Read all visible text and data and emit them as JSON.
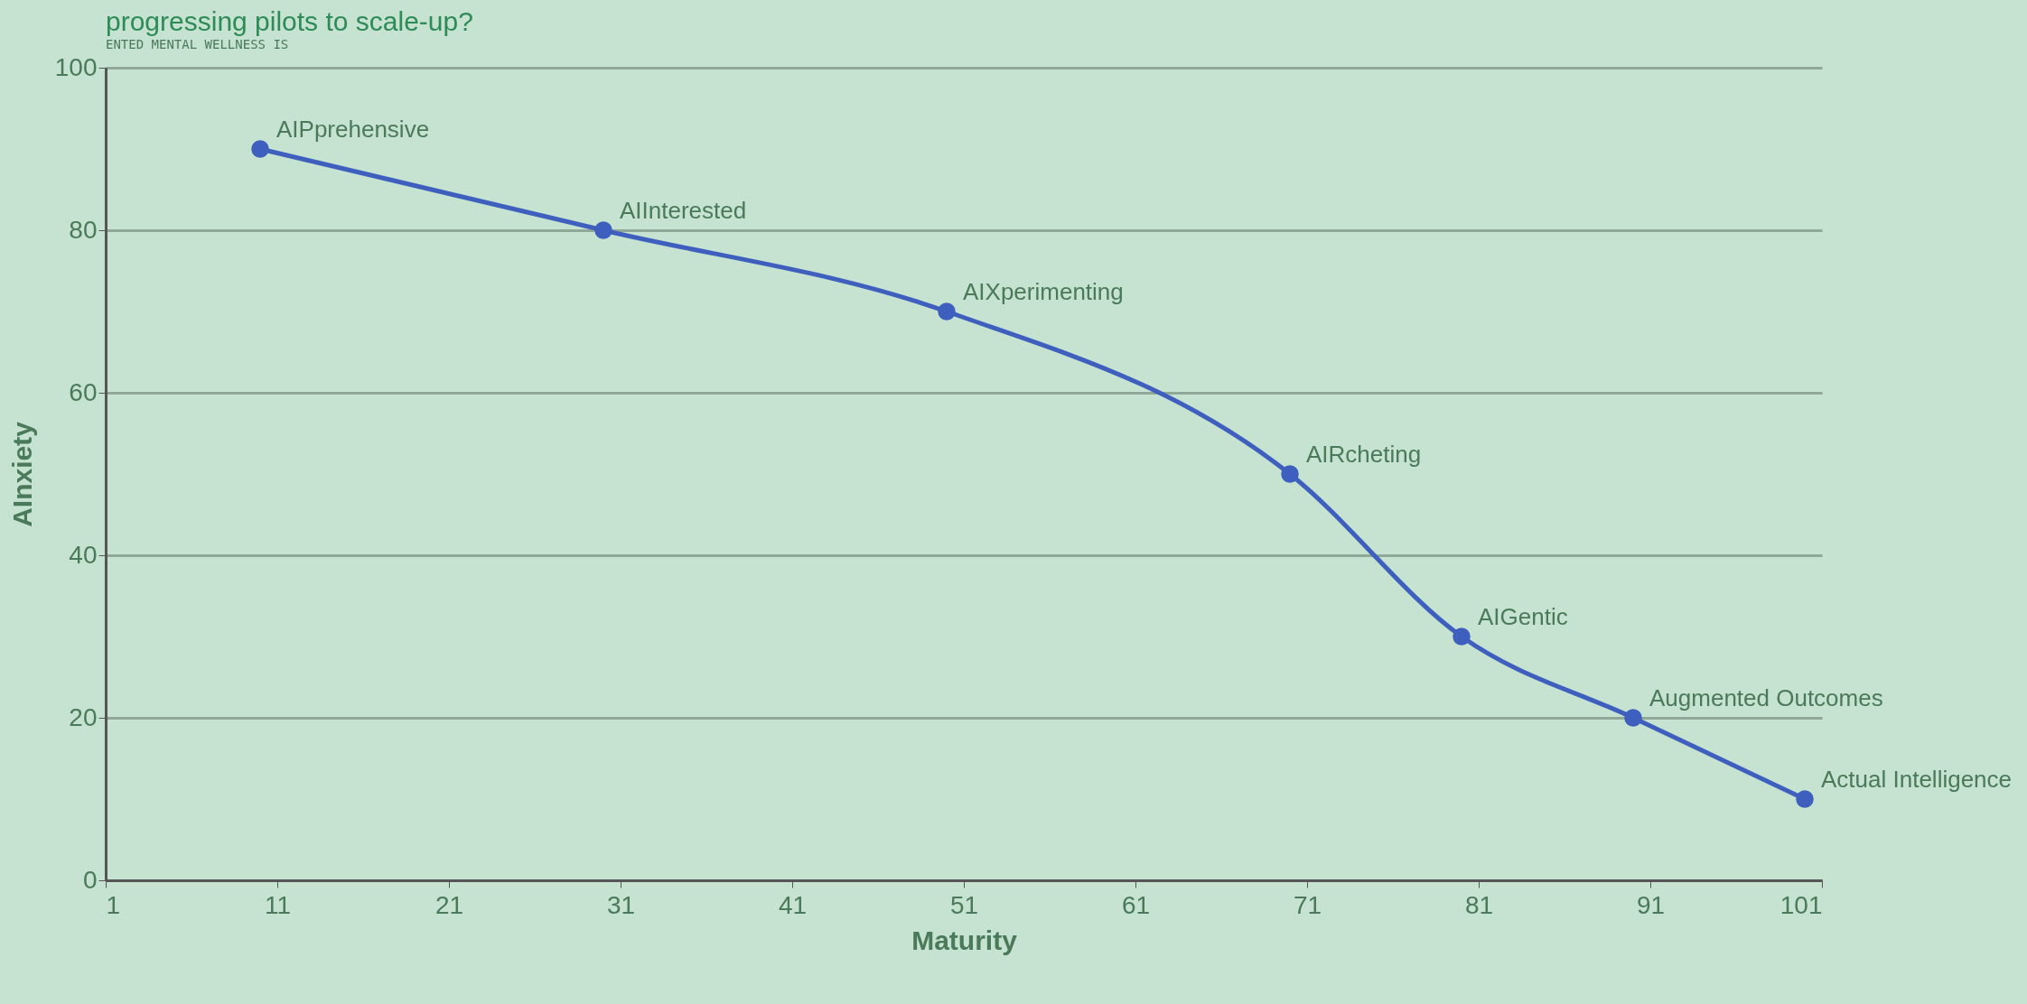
{
  "chart_data": {
    "type": "line",
    "xlabel": "Maturity",
    "ylabel": "AInxiety",
    "x": [
      10,
      30,
      50,
      70,
      80,
      90,
      100
    ],
    "series": [
      {
        "color": "#3f5fbf",
        "values": [
          90,
          80,
          70,
          50,
          30,
          20,
          10
        ]
      }
    ],
    "xlim": [
      1,
      101
    ],
    "xticks": [
      1,
      11,
      21,
      31,
      41,
      51,
      61,
      71,
      81,
      91,
      101
    ],
    "ylim": [
      0,
      100
    ],
    "yticks": [
      0,
      20,
      40,
      60,
      80,
      100
    ],
    "grid": "y",
    "marker": "circle",
    "line_style": "solid",
    "annotations": [
      {
        "text": "AIPprehensive",
        "x": 10,
        "y": 90
      },
      {
        "text": "AIInterested",
        "x": 30,
        "y": 80
      },
      {
        "text": "AIXperimenting",
        "x": 50,
        "y": 70
      },
      {
        "text": "AIRcheting",
        "x": 70,
        "y": 50
      },
      {
        "text": "AIGentic",
        "x": 80,
        "y": 30
      },
      {
        "text": "Augmented Outcomes",
        "x": 90,
        "y": 20
      },
      {
        "text": "Actual Intelligence",
        "x": 100,
        "y": 10
      },
      "progressing pilots to scale-up?",
      "ENTED MENTAL WELLNESS IS"
    ]
  }
}
